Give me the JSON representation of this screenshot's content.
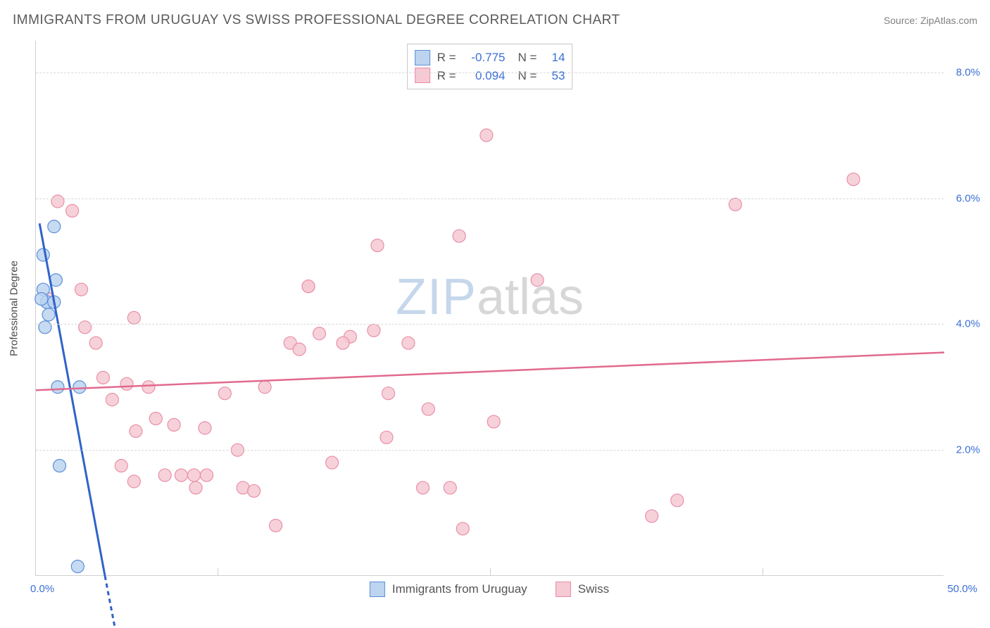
{
  "title": "IMMIGRANTS FROM URUGUAY VS SWISS PROFESSIONAL DEGREE CORRELATION CHART",
  "source_label": "Source: ",
  "source_name": "ZipAtlas.com",
  "y_axis_label": "Professional Degree",
  "watermark_a": "ZIP",
  "watermark_b": "atlas",
  "chart": {
    "type": "scatter",
    "xlim": [
      0,
      50
    ],
    "ylim": [
      0,
      8.5
    ],
    "x_ticks_labels": {
      "min": "0.0%",
      "max": "50.0%"
    },
    "y_ticks": [
      2.0,
      4.0,
      6.0,
      8.0
    ],
    "y_tick_labels": [
      "2.0%",
      "4.0%",
      "6.0%",
      "8.0%"
    ],
    "x_minor_ticks": [
      10,
      25,
      40
    ],
    "grid_color": "#d8d8d8",
    "axis_color": "#cfcfcf",
    "background": "#ffffff",
    "label_fontsize": 15,
    "tick_color": "#3b6fd6",
    "series": [
      {
        "name": "Immigrants from Uruguay",
        "legend_label": "Immigrants from Uruguay",
        "fill": "#bcd4f0",
        "stroke": "#5b8fd6",
        "line_color": "#2f63c9",
        "R_label": "R =",
        "R": "-0.775",
        "N_label": "N =",
        "N": "14",
        "marker_radius": 9,
        "marker_opacity": 0.85,
        "line_width": 3,
        "trend": {
          "x1": 0.2,
          "y1": 5.6,
          "x2": 3.8,
          "y2": 0.0
        },
        "points": [
          [
            0.6,
            4.35
          ],
          [
            0.6,
            4.35
          ],
          [
            0.7,
            4.15
          ],
          [
            1.0,
            5.55
          ],
          [
            0.4,
            5.1
          ],
          [
            0.4,
            4.55
          ],
          [
            1.1,
            4.7
          ],
          [
            1.0,
            4.35
          ],
          [
            1.3,
            1.75
          ],
          [
            1.2,
            3.0
          ],
          [
            2.4,
            3.0
          ],
          [
            2.3,
            0.15
          ],
          [
            0.5,
            3.95
          ],
          [
            0.3,
            4.4
          ]
        ]
      },
      {
        "name": "Swiss",
        "legend_label": "Swiss",
        "fill": "#f6c9d4",
        "stroke": "#e98fa8",
        "line_color": "#e16a8e",
        "R_label": "R =",
        "R": "0.094",
        "N_label": "N =",
        "N": "53",
        "marker_radius": 9,
        "marker_opacity": 0.85,
        "line_width": 2.5,
        "trend": {
          "x1": 0.0,
          "y1": 2.95,
          "x2": 50.0,
          "y2": 3.55
        },
        "points": [
          [
            0.7,
            4.4
          ],
          [
            1.2,
            5.95
          ],
          [
            2.0,
            5.8
          ],
          [
            2.5,
            4.55
          ],
          [
            2.7,
            3.95
          ],
          [
            3.7,
            3.15
          ],
          [
            3.3,
            3.7
          ],
          [
            4.2,
            2.8
          ],
          [
            5.0,
            3.05
          ],
          [
            5.4,
            4.1
          ],
          [
            5.5,
            2.3
          ],
          [
            5.4,
            1.5
          ],
          [
            6.2,
            3.0
          ],
          [
            6.6,
            2.5
          ],
          [
            7.1,
            1.6
          ],
          [
            8.0,
            1.6
          ],
          [
            8.7,
            1.6
          ],
          [
            8.8,
            1.4
          ],
          [
            9.3,
            2.35
          ],
          [
            10.4,
            2.9
          ],
          [
            11.1,
            2.0
          ],
          [
            11.4,
            1.4
          ],
          [
            12.0,
            1.35
          ],
          [
            13.2,
            0.8
          ],
          [
            12.6,
            3.0
          ],
          [
            14.0,
            3.7
          ],
          [
            14.5,
            3.6
          ],
          [
            15.0,
            4.6
          ],
          [
            15.0,
            4.6
          ],
          [
            15.6,
            3.85
          ],
          [
            16.3,
            1.8
          ],
          [
            17.3,
            3.8
          ],
          [
            18.6,
            3.9
          ],
          [
            18.8,
            5.25
          ],
          [
            19.4,
            2.9
          ],
          [
            19.3,
            2.2
          ],
          [
            20.5,
            3.7
          ],
          [
            21.3,
            1.4
          ],
          [
            21.6,
            2.65
          ],
          [
            22.8,
            1.4
          ],
          [
            23.3,
            5.4
          ],
          [
            24.8,
            7.0
          ],
          [
            23.5,
            0.75
          ],
          [
            25.2,
            2.45
          ],
          [
            27.6,
            4.7
          ],
          [
            33.9,
            0.95
          ],
          [
            35.3,
            1.2
          ],
          [
            38.5,
            5.9
          ],
          [
            45.0,
            6.3
          ],
          [
            9.4,
            1.6
          ],
          [
            16.9,
            3.7
          ],
          [
            4.7,
            1.75
          ],
          [
            7.6,
            2.4
          ]
        ]
      }
    ]
  }
}
